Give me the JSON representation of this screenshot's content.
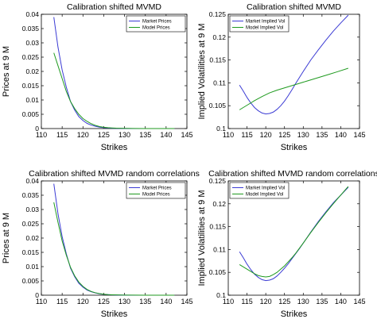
{
  "figure": {
    "colors": {
      "market": "#3b3bd4",
      "model": "#1f9a1f",
      "axis": "#000000"
    }
  },
  "chart_data": [
    {
      "type": "line",
      "title": "Calibration shifted MVMD",
      "xlabel": "Strikes",
      "ylabel": "Prices at 9 M",
      "xlim": [
        110,
        145
      ],
      "ylim": [
        0,
        0.04
      ],
      "x_ticks": [
        "110",
        "115",
        "120",
        "125",
        "130",
        "135",
        "140",
        "145"
      ],
      "y_ticks": [
        "0",
        "0.005",
        "0.01",
        "0.015",
        "0.02",
        "0.025",
        "0.03",
        "0.035",
        "0.04"
      ],
      "legend": {
        "position": "top-right",
        "entries": [
          "Market Prices",
          "Model Prices"
        ]
      },
      "series": [
        {
          "name": "Market Prices",
          "x": [
            113,
            114,
            115,
            116,
            117,
            118,
            119,
            120,
            121,
            122,
            123,
            124,
            125,
            126,
            127,
            128,
            130,
            132,
            135,
            138,
            140,
            142
          ],
          "y": [
            0.039,
            0.0285,
            0.0205,
            0.0145,
            0.0095,
            0.0065,
            0.0042,
            0.0028,
            0.0018,
            0.0012,
            0.0008,
            0.0005,
            0.0003,
            0.0002,
            0.00012,
            8e-05,
            3e-05,
            1e-05,
            5e-06,
            2e-06,
            1e-06,
            0.0
          ]
        },
        {
          "name": "Model Prices",
          "x": [
            113,
            114,
            115,
            116,
            117,
            118,
            119,
            120,
            121,
            122,
            123,
            124,
            125,
            126,
            127,
            128,
            130,
            132,
            135,
            138,
            140,
            142
          ],
          "y": [
            0.0265,
            0.022,
            0.0175,
            0.013,
            0.0095,
            0.007,
            0.005,
            0.0035,
            0.0025,
            0.0017,
            0.0011,
            0.0007,
            0.00045,
            0.0003,
            0.0002,
            0.00013,
            6e-05,
            3e-05,
            1e-05,
            5e-06,
            3e-06,
            1e-06
          ]
        }
      ]
    },
    {
      "type": "line",
      "title": "Calibration shifted MVMD",
      "xlabel": "Strikes",
      "ylabel": "Implied Volatilities at 9 M",
      "xlim": [
        110,
        145
      ],
      "ylim": [
        0.1,
        0.125
      ],
      "x_ticks": [
        "110",
        "115",
        "120",
        "125",
        "130",
        "135",
        "140",
        "145"
      ],
      "y_ticks": [
        "0.1",
        "0.105",
        "0.11",
        "0.115",
        "0.12",
        "0.125"
      ],
      "legend": {
        "position": "top-left",
        "entries": [
          "Market Implied Vol",
          "Model Implied Vol"
        ]
      },
      "series": [
        {
          "name": "Market Implied Vol",
          "x": [
            113,
            114,
            115,
            116,
            117,
            118,
            119,
            120,
            121,
            122,
            123,
            124,
            125,
            126,
            127,
            128,
            129,
            130,
            132,
            134,
            136,
            138,
            140,
            142
          ],
          "y": [
            0.1095,
            0.1082,
            0.1068,
            0.1056,
            0.1046,
            0.1039,
            0.1034,
            0.1032,
            0.1033,
            0.1036,
            0.1042,
            0.105,
            0.106,
            0.1072,
            0.1085,
            0.1099,
            0.1112,
            0.1125,
            0.115,
            0.1172,
            0.1193,
            0.1213,
            0.1231,
            0.1248
          ]
        },
        {
          "name": "Model Implied Vol",
          "x": [
            113,
            115,
            117,
            119,
            121,
            123,
            125,
            127,
            129,
            131,
            133,
            135,
            137,
            139,
            142
          ],
          "y": [
            0.1041,
            0.1051,
            0.1061,
            0.107,
            0.1078,
            0.1084,
            0.1089,
            0.1094,
            0.1099,
            0.1104,
            0.1109,
            0.1114,
            0.1119,
            0.1124,
            0.1132
          ]
        }
      ]
    },
    {
      "type": "line",
      "title": "Calibration shifted MVMD random correlations",
      "xlabel": "Strikes",
      "ylabel": "Prices at 9 M",
      "xlim": [
        110,
        145
      ],
      "ylim": [
        0,
        0.04
      ],
      "x_ticks": [
        "110",
        "115",
        "120",
        "125",
        "130",
        "135",
        "140",
        "145"
      ],
      "y_ticks": [
        "0",
        "0.005",
        "0.01",
        "0.015",
        "0.02",
        "0.025",
        "0.03",
        "0.035",
        "0.04"
      ],
      "legend": {
        "position": "top-right",
        "entries": [
          "Market Prices",
          "Model Prices"
        ]
      },
      "series": [
        {
          "name": "Market Prices",
          "x": [
            113,
            114,
            115,
            116,
            117,
            118,
            119,
            120,
            121,
            122,
            123,
            124,
            125,
            126,
            127,
            128,
            130,
            132,
            135,
            138,
            140,
            142
          ],
          "y": [
            0.039,
            0.0285,
            0.0205,
            0.0145,
            0.0095,
            0.0065,
            0.0042,
            0.0028,
            0.0018,
            0.0012,
            0.0008,
            0.0005,
            0.0003,
            0.0002,
            0.00012,
            8e-05,
            3e-05,
            1e-05,
            5e-06,
            2e-06,
            1e-06,
            0.0
          ]
        },
        {
          "name": "Model Prices",
          "x": [
            113,
            114,
            115,
            116,
            117,
            118,
            119,
            120,
            121,
            122,
            123,
            124,
            125,
            126,
            127,
            128,
            130,
            132,
            135,
            138,
            140,
            142
          ],
          "y": [
            0.0325,
            0.0255,
            0.019,
            0.014,
            0.0098,
            0.0068,
            0.0046,
            0.0031,
            0.002,
            0.0013,
            0.00085,
            0.00055,
            0.00035,
            0.00022,
            0.00014,
            9e-05,
            4e-05,
            2e-05,
            8e-06,
            3e-06,
            2e-06,
            1e-06
          ]
        }
      ]
    },
    {
      "type": "line",
      "title": "Calibration shifted MVMD random correlations",
      "xlabel": "Strikes",
      "ylabel": "Implied Volatilities at 9 M",
      "xlim": [
        110,
        145
      ],
      "ylim": [
        0.1,
        0.125
      ],
      "x_ticks": [
        "110",
        "115",
        "120",
        "125",
        "130",
        "135",
        "140",
        "145"
      ],
      "y_ticks": [
        "0.1",
        "0.105",
        "0.11",
        "0.115",
        "0.12",
        "0.125"
      ],
      "legend": {
        "position": "top-left",
        "entries": [
          "Market Implied Vol",
          "Model Implied Vol"
        ]
      },
      "series": [
        {
          "name": "Market Implied Vol",
          "x": [
            113,
            114,
            115,
            116,
            117,
            118,
            119,
            120,
            121,
            122,
            123,
            124,
            125,
            126,
            127,
            128,
            129,
            130,
            132,
            134,
            136,
            138,
            140,
            142
          ],
          "y": [
            0.1095,
            0.1082,
            0.1068,
            0.1056,
            0.1046,
            0.1039,
            0.1034,
            0.1032,
            0.1033,
            0.1036,
            0.1042,
            0.105,
            0.1059,
            0.1069,
            0.108,
            0.1091,
            0.1102,
            0.1114,
            0.1138,
            0.1161,
            0.1182,
            0.1202,
            0.1219,
            0.1236
          ]
        },
        {
          "name": "Model Implied Vol",
          "x": [
            113,
            114,
            115,
            116,
            117,
            118,
            119,
            120,
            121,
            122,
            123,
            124,
            125,
            126,
            127,
            128,
            129,
            130,
            132,
            134,
            136,
            138,
            140,
            142
          ],
          "y": [
            0.1067,
            0.1062,
            0.1057,
            0.1052,
            0.1047,
            0.1043,
            0.1041,
            0.104,
            0.1041,
            0.1045,
            0.105,
            0.1057,
            0.1064,
            0.1073,
            0.1082,
            0.1092,
            0.1103,
            0.1114,
            0.1137,
            0.1159,
            0.118,
            0.12,
            0.1219,
            0.1238
          ]
        }
      ]
    }
  ]
}
